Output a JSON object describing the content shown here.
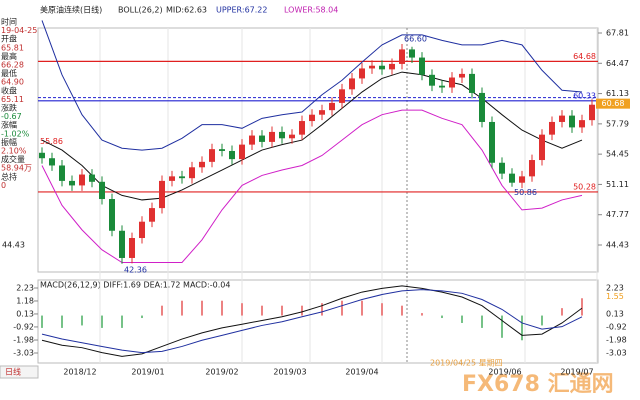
{
  "header": {
    "title": "美原油连续(日线)",
    "indicator": "BOLL(26,2)",
    "mid": "MID:62.63",
    "upper": "UPPER:67.22",
    "lower": "LOWER:58.04"
  },
  "info_panel": [
    "时间",
    "19-04-25",
    "开盘",
    "65.81",
    "最高",
    "66.28",
    "最低",
    "64.90",
    "收盘",
    "65.11",
    "涨跌",
    "-0.67",
    "涨幅",
    "-1.02%",
    "振幅",
    "2.10%",
    "成交量",
    "58.94万",
    "总持",
    "0"
  ],
  "chart_data": [
    {
      "type": "candlestick",
      "ylim": [
        44.43,
        67.81
      ],
      "yticks": [
        67.81,
        64.47,
        61.13,
        57.79,
        54.45,
        51.11,
        47.77,
        44.43
      ],
      "open": [
        54.6,
        54.0,
        53.2,
        51.5,
        51.0,
        52.2,
        51.4,
        49.5,
        46.0,
        43.0,
        45.2,
        47.0,
        48.5,
        51.5,
        52.0,
        51.8,
        53.0,
        53.6,
        55.0,
        54.8,
        53.9,
        55.5,
        56.5,
        55.8,
        56.9,
        56.2,
        56.6,
        58.1,
        58.8,
        59.3,
        60.1,
        61.6,
        62.8,
        63.9,
        64.2,
        63.8,
        64.4,
        66.0,
        65.1,
        63.2,
        62.0,
        61.8,
        62.9,
        63.3,
        61.2,
        58.0,
        53.5,
        52.3,
        51.3,
        52.0,
        53.8,
        56.6,
        58.0,
        58.7,
        57.4,
        58.2
      ],
      "high": [
        55.2,
        54.6,
        53.8,
        52.1,
        52.8,
        52.8,
        52.0,
        50.1,
        46.6,
        45.8,
        47.6,
        49.1,
        52.1,
        52.6,
        52.6,
        53.6,
        54.2,
        55.6,
        55.6,
        55.4,
        56.1,
        57.1,
        57.1,
        57.5,
        57.5,
        57.2,
        58.7,
        59.4,
        59.9,
        60.7,
        62.2,
        63.4,
        64.5,
        64.8,
        64.8,
        65.0,
        66.6,
        66.3,
        65.7,
        63.8,
        62.6,
        63.5,
        63.9,
        63.9,
        61.8,
        58.6,
        54.1,
        52.9,
        52.6,
        54.4,
        57.2,
        58.6,
        59.3,
        59.3,
        58.8,
        60.5
      ],
      "low": [
        53.4,
        52.6,
        50.9,
        50.4,
        50.4,
        50.8,
        48.9,
        45.4,
        42.36,
        42.4,
        44.6,
        46.4,
        47.9,
        50.9,
        51.2,
        51.2,
        52.4,
        53.0,
        54.2,
        53.3,
        53.3,
        54.9,
        55.2,
        55.2,
        55.6,
        55.6,
        56.0,
        57.5,
        58.2,
        58.7,
        59.5,
        61.0,
        62.2,
        63.3,
        63.2,
        63.2,
        63.8,
        64.5,
        62.6,
        61.4,
        61.2,
        61.2,
        62.3,
        60.6,
        57.4,
        52.9,
        51.7,
        50.86,
        50.7,
        51.4,
        53.2,
        56.0,
        57.4,
        56.8,
        56.8,
        57.6
      ],
      "close": [
        54.0,
        53.2,
        51.5,
        51.0,
        52.2,
        51.4,
        49.5,
        46.0,
        43.0,
        45.2,
        47.0,
        48.5,
        51.5,
        52.0,
        51.8,
        53.0,
        53.6,
        55.0,
        54.8,
        53.9,
        55.5,
        56.5,
        55.8,
        56.9,
        56.2,
        56.6,
        58.1,
        58.8,
        59.3,
        60.1,
        61.6,
        62.8,
        63.9,
        64.2,
        63.8,
        64.4,
        66.0,
        65.1,
        63.2,
        62.0,
        61.8,
        62.9,
        63.3,
        61.2,
        58.0,
        53.5,
        52.3,
        51.3,
        52.0,
        53.8,
        56.6,
        58.0,
        58.7,
        57.4,
        58.2,
        59.9
      ],
      "up_color": "#e03030",
      "down_color": "#1a8a3a",
      "bands": {
        "x": [
          0,
          2,
          4,
          6,
          8,
          10,
          12,
          14,
          16,
          18,
          20,
          22,
          24,
          26,
          28,
          30,
          32,
          34,
          36,
          38,
          40,
          42,
          44,
          46,
          48,
          50,
          52,
          54
        ],
        "series": [
          {
            "color": "#1f2fa0",
            "values": [
              69.2,
              63.2,
              58.8,
              56.0,
              55.1,
              54.9,
              55.1,
              56.2,
              57.7,
              57.7,
              57.3,
              58.4,
              58.8,
              59.1,
              61.0,
              62.6,
              64.6,
              66.5,
              67.6,
              67.6,
              67.0,
              66.5,
              66.5,
              67.0,
              66.5,
              63.7,
              61.5,
              61.3
            ]
          },
          {
            "color": "#111111",
            "values": [
              56.0,
              54.9,
              53.2,
              51.0,
              49.9,
              49.4,
              49.6,
              50.5,
              51.6,
              52.7,
              53.8,
              54.9,
              55.5,
              56.0,
              57.7,
              59.5,
              61.3,
              62.8,
              63.5,
              63.2,
              62.6,
              62.1,
              60.6,
              58.8,
              57.1,
              56.0,
              55.1,
              56.0
            ]
          },
          {
            "color": "#d020c8",
            "values": [
              53.2,
              48.8,
              46.1,
              43.9,
              42.5,
              42.5,
              42.5,
              42.5,
              45.0,
              48.3,
              51.0,
              52.1,
              52.7,
              53.2,
              54.3,
              56.0,
              57.7,
              58.8,
              59.3,
              59.3,
              58.4,
              57.7,
              54.9,
              51.0,
              48.3,
              48.5,
              49.4,
              49.9
            ]
          }
        ]
      },
      "levels": [
        {
          "value": 64.68,
          "label": "64.68",
          "color": "#e02020"
        },
        {
          "value": 60.33,
          "label": "60.33",
          "color": "#2020d0"
        },
        {
          "value": 50.28,
          "label": "50.28",
          "color": "#e02020"
        }
      ],
      "current": {
        "value": 60.68,
        "label": "60.68",
        "color": "#f0a020"
      },
      "annotations": [
        {
          "index": 8,
          "value": 42.36,
          "label": "42.36"
        },
        {
          "index": 36,
          "value": 66.6,
          "label": "66.60"
        },
        {
          "index": 47,
          "value": 50.86,
          "label": "50.86"
        }
      ],
      "left_labels": [
        {
          "value": 55.86,
          "label": "55.86",
          "color": "#e02020"
        },
        {
          "value": 44.43,
          "label": "44.43",
          "color": "#222222"
        }
      ]
    },
    {
      "type": "macd",
      "title": "MACD(26,12,9) DIFF:1.69 DEA:1.72 MACD:-0.04",
      "ylim": [
        -3.03,
        2.23
      ],
      "yticks": [
        2.23,
        1.18,
        0.13,
        -0.92,
        -1.98,
        -3.03
      ],
      "right_ticks": [
        2.23,
        {
          "value": 1.55,
          "label": "1.55"
        },
        0.13,
        -0.92,
        -1.98,
        -3.03
      ],
      "x": [
        0,
        2,
        4,
        6,
        8,
        10,
        12,
        14,
        16,
        18,
        20,
        22,
        24,
        26,
        28,
        30,
        32,
        34,
        36,
        38,
        40,
        42,
        44,
        46,
        48,
        50,
        52,
        54
      ],
      "series": [
        {
          "name": "DIFF",
          "color": "#111111",
          "values": [
            -2.0,
            -2.4,
            -2.6,
            -3.0,
            -3.3,
            -3.1,
            -2.5,
            -1.9,
            -1.4,
            -1.0,
            -0.7,
            -0.4,
            -0.1,
            0.3,
            0.8,
            1.4,
            1.9,
            2.2,
            2.4,
            2.2,
            1.9,
            1.5,
            0.8,
            -0.4,
            -1.6,
            -1.5,
            -0.6,
            0.6
          ]
        },
        {
          "name": "DEA",
          "color": "#2030a0",
          "values": [
            -1.5,
            -1.9,
            -2.2,
            -2.5,
            -2.8,
            -3.0,
            -2.9,
            -2.5,
            -2.0,
            -1.6,
            -1.2,
            -0.8,
            -0.5,
            -0.1,
            0.3,
            0.8,
            1.3,
            1.7,
            2.0,
            2.1,
            2.0,
            1.8,
            1.3,
            0.5,
            -0.6,
            -1.1,
            -0.9,
            -0.1
          ]
        }
      ],
      "histogram": [
        -1.0,
        -1.0,
        -0.8,
        -1.0,
        -1.0,
        -0.2,
        0.8,
        1.2,
        1.2,
        1.2,
        1.0,
        0.8,
        0.8,
        0.8,
        1.0,
        1.2,
        1.2,
        1.0,
        0.8,
        0.2,
        -0.2,
        -0.6,
        -1.0,
        -1.8,
        -2.0,
        -0.8,
        0.6,
        1.4
      ]
    }
  ],
  "x_labels": [
    "2018/12",
    "2019/01",
    "2019/02",
    "2019/03",
    "2019/04",
    "2019/06",
    "2019/07"
  ],
  "cursor_label": "2019/04/25 星期四",
  "period": "日线",
  "watermark": "FX678 汇通网"
}
